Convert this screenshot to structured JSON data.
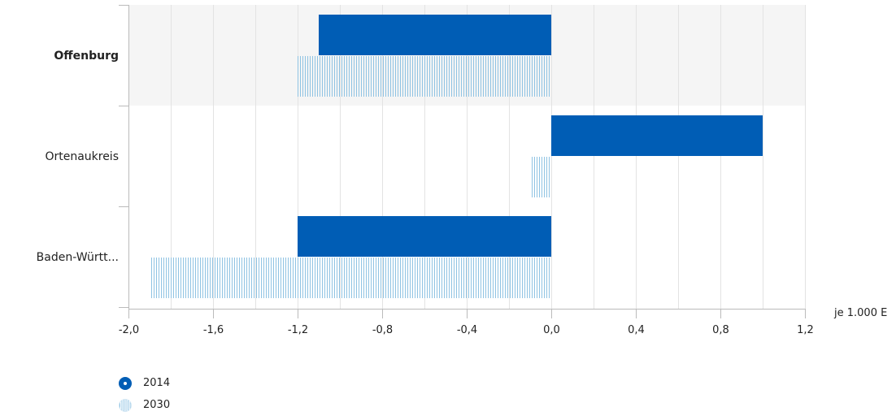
{
  "chart_data": {
    "type": "bar",
    "orientation": "horizontal",
    "categories": [
      "Offenburg",
      "Ortenaukreis",
      "Baden-Württ..."
    ],
    "highlighted_category": "Offenburg",
    "series": [
      {
        "name": "2014",
        "values": [
          -1.1,
          1.0,
          -1.2
        ],
        "color": "#005db5",
        "fill": "solid"
      },
      {
        "name": "2030",
        "values": [
          -1.2,
          -0.1,
          -1.9
        ],
        "color": "#8fc3e3",
        "fill": "vertical-hatch"
      }
    ],
    "xlim": [
      -2.0,
      1.2
    ],
    "xticks": [
      -2.0,
      -1.6,
      -1.2,
      -0.8,
      -0.4,
      0.0,
      0.4,
      0.8,
      1.2
    ],
    "xtick_labels": [
      "-2,0",
      "-1,6",
      "-1,2",
      "-0,8",
      "-0,4",
      "0,0",
      "0,4",
      "0,8",
      "1,2"
    ],
    "xlabel": "je 1.000 E",
    "grid": true,
    "legend_position": "bottom-left",
    "colors": {
      "highlight_band": "#f5f5f5",
      "grid": "#e3e3e3",
      "axis": "#bbbbbb"
    }
  }
}
